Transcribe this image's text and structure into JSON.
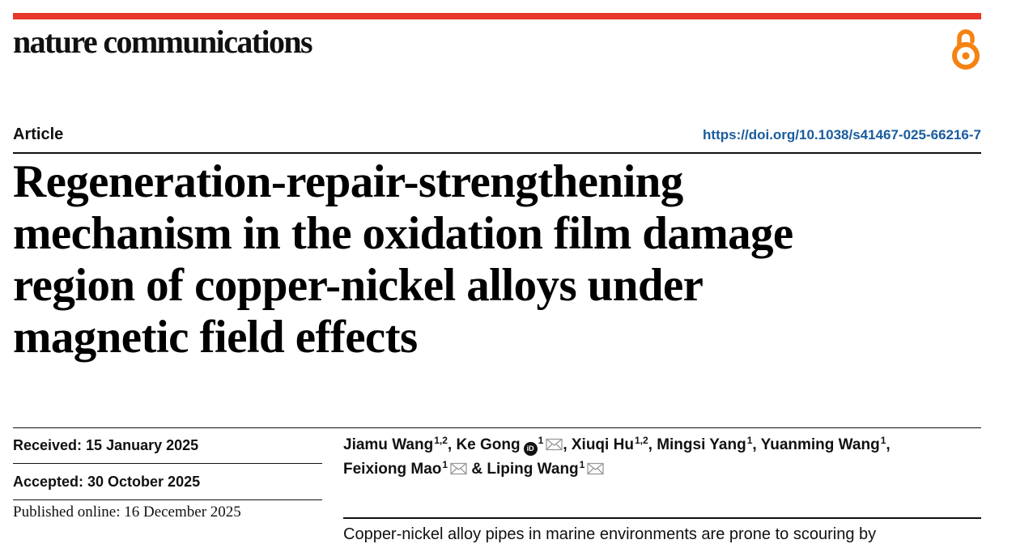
{
  "journal": {
    "name": "nature communications",
    "brand_color": "#e8382c"
  },
  "article": {
    "type": "Article",
    "doi": "https://doi.org/10.1038/s41467-025-66216-7",
    "doi_color": "#1a5c9e",
    "title_lines": [
      "Regeneration-repair-strengthening",
      "mechanism in the oxidation film damage",
      "region of copper-nickel alloys under",
      "magnetic field effects"
    ]
  },
  "dates": {
    "received": "Received: 15 January 2025",
    "accepted": "Accepted: 30 October 2025",
    "published": "Published online: 16 December 2025"
  },
  "authors": [
    {
      "name": "Jiamu Wang",
      "aff": "1,2"
    },
    {
      "name": "Ke Gong",
      "aff": "1"
    },
    {
      "name": "Xiuqi Hu",
      "aff": "1,2"
    },
    {
      "name": "Mingsi Yang",
      "aff": "1"
    },
    {
      "name": "Yuanming Wang",
      "aff": "1"
    },
    {
      "name": "Feixiong Mao",
      "aff": "1"
    },
    {
      "name": "Liping Wang",
      "aff": "1"
    }
  ],
  "separators": {
    "comma": ",",
    "amp": "&"
  },
  "icons": {
    "open_access": "open-access-icon",
    "orcid": "orcid-icon",
    "mail": "mail-icon"
  },
  "orcid_glyph": "iD",
  "abstract_start": "Copper-nickel alloy pipes in marine environments are prone to scouring by"
}
